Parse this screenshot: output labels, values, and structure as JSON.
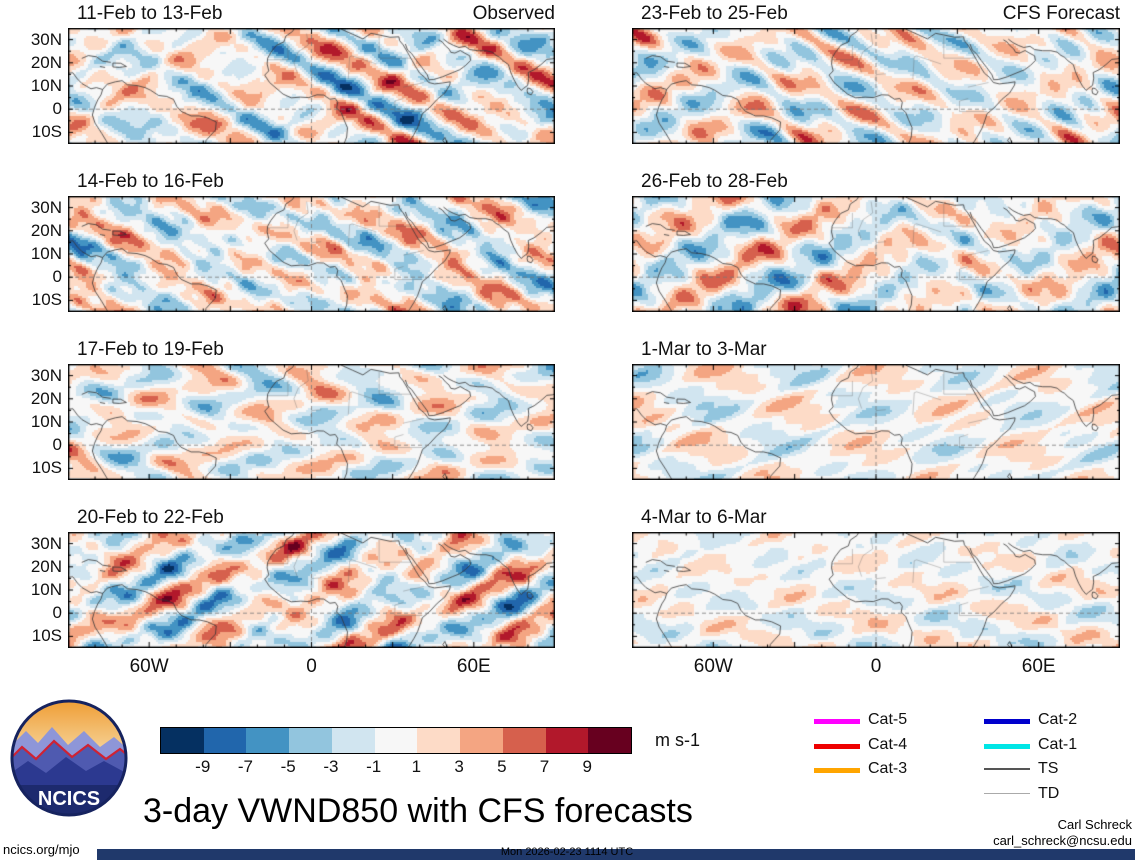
{
  "chart_data": {
    "type": "filled-contour-map-grid",
    "title": "3-day VWND850 with CFS forecasts",
    "columns": [
      {
        "corner_label": "Observed",
        "panels": [
          "11-Feb to 13-Feb",
          "14-Feb to 16-Feb",
          "17-Feb to 19-Feb",
          "20-Feb to 22-Feb"
        ]
      },
      {
        "corner_label": "CFS Forecast",
        "panels": [
          "23-Feb to 25-Feb",
          "26-Feb to 28-Feb",
          "1-Mar to 3-Mar",
          "4-Mar to 6-Mar"
        ]
      }
    ],
    "lat_ticks": [
      "30N",
      "20N",
      "10N",
      "0",
      "10S"
    ],
    "lat_tick_values": [
      30,
      20,
      10,
      0,
      -10
    ],
    "lon_ticks": [
      "60W",
      "0",
      "60E"
    ],
    "lon_tick_values": [
      -60,
      0,
      60
    ],
    "map_extent": {
      "lon_min": -90,
      "lon_max": 90,
      "lat_min": -15,
      "lat_max": 35
    },
    "grid_lines": {
      "equator_dashed": true,
      "prime_meridian_dashed": true
    },
    "colorbar": {
      "label": "m s-1",
      "levels": [
        -9,
        -7,
        -5,
        -3,
        -1,
        1,
        3,
        5,
        7,
        9
      ],
      "colors": [
        "#053061",
        "#2166ac",
        "#4393c3",
        "#92c5de",
        "#d1e5f0",
        "#f7f7f7",
        "#fddbc7",
        "#f4a582",
        "#d6604d",
        "#b2182b",
        "#67001f"
      ]
    }
  },
  "legend": {
    "columns": [
      [
        {
          "label": "Cat-5",
          "color": "#ff00ff",
          "weight": 5
        },
        {
          "label": "Cat-4",
          "color": "#ee0000",
          "weight": 5
        },
        {
          "label": "Cat-3",
          "color": "#ffa500",
          "weight": 5
        }
      ],
      [
        {
          "label": "Cat-2",
          "color": "#0000cd",
          "weight": 5
        },
        {
          "label": "Cat-1",
          "color": "#00e6e6",
          "weight": 5
        },
        {
          "label": "TS",
          "color": "#555555",
          "weight": 2.5
        },
        {
          "label": "TD",
          "color": "#aaaaaa",
          "weight": 1.4
        }
      ]
    ]
  },
  "logo": {
    "text": "NCICS"
  },
  "footer": {
    "site": "ncics.org/mjo",
    "timestamp": "Mon 2026-02-23 1114 UTC",
    "credit_name": "Carl Schreck",
    "credit_email": "carl_schreck@ncsu.edu"
  }
}
